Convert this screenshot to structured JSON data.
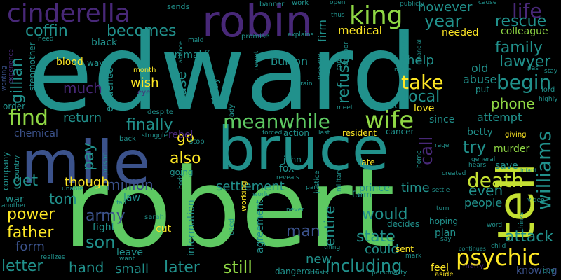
{
  "palette": {
    "background": "#000000",
    "yellow": "#c4e032",
    "green": "#5ec962",
    "light_green": "#8fd744",
    "teal": "#21918c",
    "teal_dark": "#26828e",
    "blue": "#3b528b",
    "blue_dark": "#31688e",
    "purple": "#482878",
    "purple_dark": "#440154",
    "bright_yellow": "#fde725"
  },
  "words": [
    {
      "text": "edward",
      "color": "teal"
    },
    {
      "text": "robert",
      "color": "green"
    },
    {
      "text": "bruce",
      "color": "teal"
    },
    {
      "text": "mile",
      "color": "blue"
    },
    {
      "text": "tell",
      "color": "yellow"
    },
    {
      "text": "robin",
      "color": "purple"
    },
    {
      "text": "cinderella",
      "color": "purple"
    },
    {
      "text": "king",
      "color": "light_green"
    },
    {
      "text": "psychic",
      "color": "bright_yellow"
    },
    {
      "text": "williams",
      "color": "teal"
    },
    {
      "text": "meanwhile",
      "color": "green"
    },
    {
      "text": "wife",
      "color": "light_green"
    },
    {
      "text": "find",
      "color": "light_green"
    },
    {
      "text": "death",
      "color": "yellow"
    },
    {
      "text": "take",
      "color": "bright_yellow"
    },
    {
      "text": "begin",
      "color": "teal"
    },
    {
      "text": "life",
      "color": "purple"
    },
    {
      "text": "rescue",
      "color": "teal"
    },
    {
      "text": "family",
      "color": "teal"
    },
    {
      "text": "lawyer",
      "color": "teal"
    },
    {
      "text": "year",
      "color": "teal"
    },
    {
      "text": "however",
      "color": "teal"
    },
    {
      "text": "becomes",
      "color": "teal"
    },
    {
      "text": "coffin",
      "color": "teal"
    },
    {
      "text": "gillian",
      "color": "teal"
    },
    {
      "text": "attack",
      "color": "teal"
    },
    {
      "text": "army",
      "color": "blue"
    },
    {
      "text": "son",
      "color": "teal"
    },
    {
      "text": "later",
      "color": "teal"
    },
    {
      "text": "still",
      "color": "light_green"
    },
    {
      "text": "letter",
      "color": "teal"
    },
    {
      "text": "hand",
      "color": "teal"
    },
    {
      "text": "small",
      "color": "teal"
    },
    {
      "text": "including",
      "color": "teal"
    },
    {
      "text": "would",
      "color": "teal"
    },
    {
      "text": "state",
      "color": "teal"
    },
    {
      "text": "could",
      "color": "teal"
    },
    {
      "text": "father",
      "color": "bright_yellow"
    },
    {
      "text": "power",
      "color": "bright_yellow"
    },
    {
      "text": "form",
      "color": "blue"
    },
    {
      "text": "tom",
      "color": "teal"
    },
    {
      "text": "get",
      "color": "teal"
    },
    {
      "text": "war",
      "color": "teal"
    },
    {
      "text": "million",
      "color": "blue"
    },
    {
      "text": "settlement",
      "color": "teal"
    },
    {
      "text": "though",
      "color": "bright_yellow"
    },
    {
      "text": "also",
      "color": "bright_yellow"
    },
    {
      "text": "pay",
      "color": "teal"
    },
    {
      "text": "go",
      "color": "bright_yellow"
    },
    {
      "text": "finally",
      "color": "teal"
    },
    {
      "text": "return",
      "color": "teal"
    },
    {
      "text": "much",
      "color": "purple"
    },
    {
      "text": "wish",
      "color": "bright_yellow"
    },
    {
      "text": "case",
      "color": "teal"
    },
    {
      "text": "man",
      "color": "blue"
    },
    {
      "text": "new",
      "color": "teal"
    },
    {
      "text": "entire",
      "color": "teal"
    },
    {
      "text": "time",
      "color": "teal"
    },
    {
      "text": "prince",
      "color": "teal"
    },
    {
      "text": "refuse",
      "color": "teal"
    },
    {
      "text": "local",
      "color": "teal"
    },
    {
      "text": "help",
      "color": "teal"
    },
    {
      "text": "call",
      "color": "purple"
    },
    {
      "text": "try",
      "color": "teal"
    },
    {
      "text": "even",
      "color": "teal"
    },
    {
      "text": "phone",
      "color": "light_green"
    },
    {
      "text": "attempt",
      "color": "teal"
    },
    {
      "text": "murder",
      "color": "light_green"
    },
    {
      "text": "save",
      "color": "teal"
    },
    {
      "text": "people",
      "color": "teal"
    },
    {
      "text": "abuse",
      "color": "teal"
    },
    {
      "text": "old",
      "color": "teal"
    },
    {
      "text": "put",
      "color": "teal"
    },
    {
      "text": "love",
      "color": "bright_yellow"
    },
    {
      "text": "since",
      "color": "teal"
    },
    {
      "text": "betty",
      "color": "teal"
    },
    {
      "text": "medical",
      "color": "bright_yellow"
    },
    {
      "text": "firm",
      "color": "teal"
    },
    {
      "text": "burton",
      "color": "teal"
    },
    {
      "text": "colleague",
      "color": "light_green"
    },
    {
      "text": "needed",
      "color": "bright_yellow"
    },
    {
      "text": "evidence",
      "color": "teal"
    },
    {
      "text": "chemical",
      "color": "blue"
    },
    {
      "text": "stepmother",
      "color": "teal"
    },
    {
      "text": "black",
      "color": "teal"
    },
    {
      "text": "blood",
      "color": "bright_yellow"
    },
    {
      "text": "way",
      "color": "teal"
    },
    {
      "text": "month",
      "color": "bright_yellow"
    },
    {
      "text": "animal",
      "color": "teal"
    },
    {
      "text": "study",
      "color": "teal"
    },
    {
      "text": "rebel",
      "color": "purple"
    },
    {
      "text": "information",
      "color": "teal"
    },
    {
      "text": "fox",
      "color": "teal"
    },
    {
      "text": "john",
      "color": "teal"
    },
    {
      "text": "law",
      "color": "teal"
    },
    {
      "text": "fight",
      "color": "teal"
    },
    {
      "text": "cut",
      "color": "bright_yellow"
    },
    {
      "text": "leave",
      "color": "teal"
    },
    {
      "text": "agreement",
      "color": "teal"
    },
    {
      "text": "resident",
      "color": "bright_yellow"
    },
    {
      "text": "action",
      "color": "teal"
    },
    {
      "text": "cancer",
      "color": "teal"
    },
    {
      "text": "late",
      "color": "bright_yellow"
    },
    {
      "text": "farm",
      "color": "teal"
    },
    {
      "text": "decides",
      "color": "teal"
    },
    {
      "text": "sent",
      "color": "bright_yellow"
    },
    {
      "text": "feel",
      "color": "bright_yellow"
    },
    {
      "text": "knowing",
      "color": "blue"
    },
    {
      "text": "plan",
      "color": "teal"
    },
    {
      "text": "hoping",
      "color": "teal"
    },
    {
      "text": "dangerous",
      "color": "teal"
    },
    {
      "text": "sarah",
      "color": "teal"
    },
    {
      "text": "going",
      "color": "teal"
    },
    {
      "text": "poison",
      "color": "teal"
    },
    {
      "text": "company",
      "color": "teal"
    },
    {
      "text": "country",
      "color": "teal"
    },
    {
      "text": "order",
      "color": "teal"
    },
    {
      "text": "need",
      "color": "teal"
    },
    {
      "text": "wanting",
      "color": "blue"
    },
    {
      "text": "experience",
      "color": "purple"
    },
    {
      "text": "sends",
      "color": "teal"
    },
    {
      "text": "banner",
      "color": "teal"
    },
    {
      "text": "work",
      "color": "teal"
    },
    {
      "text": "open",
      "color": "teal"
    },
    {
      "text": "publicly",
      "color": "teal"
    },
    {
      "text": "cause",
      "color": "teal"
    },
    {
      "text": "thus",
      "color": "teal"
    },
    {
      "text": "promise",
      "color": "teal"
    },
    {
      "text": "explains",
      "color": "teal"
    },
    {
      "text": "regret",
      "color": "teal"
    },
    {
      "text": "saying",
      "color": "teal"
    },
    {
      "text": "maid",
      "color": "teal"
    },
    {
      "text": "alliance",
      "color": "teal"
    },
    {
      "text": "lost",
      "color": "teal"
    },
    {
      "text": "eye",
      "color": "purple"
    },
    {
      "text": "despite",
      "color": "teal"
    },
    {
      "text": "struggle",
      "color": "teal"
    },
    {
      "text": "lady",
      "color": "teal"
    },
    {
      "text": "live",
      "color": "teal"
    },
    {
      "text": "sir",
      "color": "teal"
    },
    {
      "text": "strain",
      "color": "teal"
    },
    {
      "text": "passage",
      "color": "teal"
    },
    {
      "text": "tank",
      "color": "teal"
    },
    {
      "text": "neighbor",
      "color": "teal"
    },
    {
      "text": "make",
      "color": "teal"
    },
    {
      "text": "effect",
      "color": "teal"
    },
    {
      "text": "meet",
      "color": "teal"
    },
    {
      "text": "forced",
      "color": "teal"
    },
    {
      "text": "last",
      "color": "teal"
    },
    {
      "text": "working",
      "color": "bright_yellow"
    },
    {
      "text": "justice",
      "color": "teal"
    },
    {
      "text": "military",
      "color": "teal"
    },
    {
      "text": "world",
      "color": "teal"
    },
    {
      "text": "reveals",
      "color": "teal"
    },
    {
      "text": "part",
      "color": "teal"
    },
    {
      "text": "used",
      "color": "teal"
    },
    {
      "text": "body",
      "color": "teal"
    },
    {
      "text": "unable",
      "color": "teal"
    },
    {
      "text": "fall",
      "color": "teal"
    },
    {
      "text": "another",
      "color": "teal"
    },
    {
      "text": "realizes",
      "color": "teal"
    },
    {
      "text": "want",
      "color": "teal"
    },
    {
      "text": "insists",
      "color": "teal"
    },
    {
      "text": "personality",
      "color": "teal"
    },
    {
      "text": "mark",
      "color": "teal"
    },
    {
      "text": "aside",
      "color": "bright_yellow"
    },
    {
      "text": "marry",
      "color": "purple"
    },
    {
      "text": "continues",
      "color": "teal"
    },
    {
      "text": "child",
      "color": "teal"
    },
    {
      "text": "buy",
      "color": "teal"
    },
    {
      "text": "say",
      "color": "teal"
    },
    {
      "text": "thing",
      "color": "teal"
    },
    {
      "text": "turn",
      "color": "teal"
    },
    {
      "text": "never",
      "color": "teal"
    },
    {
      "text": "video",
      "color": "teal"
    },
    {
      "text": "word",
      "color": "teal"
    },
    {
      "text": "settle",
      "color": "teal"
    },
    {
      "text": "hears",
      "color": "teal"
    },
    {
      "text": "infant",
      "color": "teal"
    },
    {
      "text": "giving",
      "color": "bright_yellow"
    },
    {
      "text": "created",
      "color": "teal"
    },
    {
      "text": "home",
      "color": "teal"
    },
    {
      "text": "rage",
      "color": "teal"
    },
    {
      "text": "general",
      "color": "teal"
    },
    {
      "text": "thinks",
      "color": "teal"
    },
    {
      "text": "lord",
      "color": "teal"
    },
    {
      "text": "highly",
      "color": "teal"
    },
    {
      "text": "stay",
      "color": "teal"
    },
    {
      "text": "pas",
      "color": "teal"
    },
    {
      "text": "mercenary",
      "color": "teal"
    },
    {
      "text": "financial",
      "color": "teal"
    },
    {
      "text": "back",
      "color": "teal"
    },
    {
      "text": "stop",
      "color": "teal"
    }
  ]
}
